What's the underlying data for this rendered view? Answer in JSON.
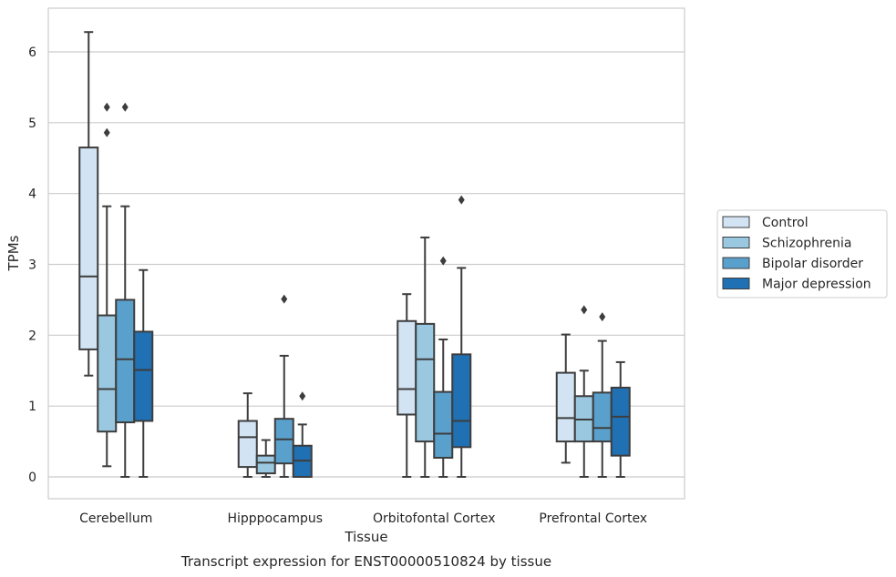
{
  "chart_data": {
    "type": "box",
    "xlabel": "Tissue",
    "ylabel": "TPMs",
    "caption": "Transcript expression for ENST00000510824 by tissue",
    "ylim": [
      -0.3,
      6.5
    ],
    "yticks": [
      0,
      1,
      2,
      3,
      4,
      5,
      6
    ],
    "grid": "horizontal",
    "legend_position": "right",
    "categories": [
      "Cerebellum",
      "Hipppocampus",
      "Orbitofontal Cortex",
      "Prefrontal Cortex"
    ],
    "series": [
      {
        "name": "Control",
        "color": "#d2e3f3",
        "boxes": [
          {
            "whisker_low": 1.43,
            "q1": 1.8,
            "median": 2.83,
            "q3": 4.65,
            "whisker_high": 6.28,
            "outliers": []
          },
          {
            "whisker_low": 0.0,
            "q1": 0.14,
            "median": 0.56,
            "q3": 0.79,
            "whisker_high": 1.18,
            "outliers": []
          },
          {
            "whisker_low": 0.0,
            "q1": 0.88,
            "median": 1.24,
            "q3": 2.2,
            "whisker_high": 2.58,
            "outliers": []
          },
          {
            "whisker_low": 0.2,
            "q1": 0.5,
            "median": 0.83,
            "q3": 1.47,
            "whisker_high": 2.01,
            "outliers": []
          }
        ]
      },
      {
        "name": "Schizophrenia",
        "color": "#9ac8e0",
        "boxes": [
          {
            "whisker_low": 0.15,
            "q1": 0.64,
            "median": 1.24,
            "q3": 2.28,
            "whisker_high": 3.82,
            "outliers": [
              4.86,
              5.22
            ]
          },
          {
            "whisker_low": 0.0,
            "q1": 0.05,
            "median": 0.2,
            "q3": 0.3,
            "whisker_high": 0.52,
            "outliers": []
          },
          {
            "whisker_low": 0.0,
            "q1": 0.5,
            "median": 1.66,
            "q3": 2.16,
            "whisker_high": 3.38,
            "outliers": []
          },
          {
            "whisker_low": 0.0,
            "q1": 0.5,
            "median": 0.81,
            "q3": 1.14,
            "whisker_high": 1.5,
            "outliers": [
              2.36
            ]
          }
        ]
      },
      {
        "name": "Bipolar disorder",
        "color": "#5aa0cd",
        "boxes": [
          {
            "whisker_low": 0.0,
            "q1": 0.77,
            "median": 1.66,
            "q3": 2.5,
            "whisker_high": 3.82,
            "outliers": [
              5.22
            ]
          },
          {
            "whisker_low": 0.0,
            "q1": 0.19,
            "median": 0.53,
            "q3": 0.82,
            "whisker_high": 1.71,
            "outliers": [
              2.51
            ]
          },
          {
            "whisker_low": 0.0,
            "q1": 0.27,
            "median": 0.61,
            "q3": 1.2,
            "whisker_high": 1.94,
            "outliers": [
              3.05
            ]
          },
          {
            "whisker_low": 0.0,
            "q1": 0.5,
            "median": 0.69,
            "q3": 1.19,
            "whisker_high": 1.92,
            "outliers": [
              2.26
            ]
          }
        ]
      },
      {
        "name": "Major depression",
        "color": "#2070b4",
        "boxes": [
          {
            "whisker_low": 0.0,
            "q1": 0.79,
            "median": 1.51,
            "q3": 2.05,
            "whisker_high": 2.92,
            "outliers": []
          },
          {
            "whisker_low": 0.0,
            "q1": 0.0,
            "median": 0.23,
            "q3": 0.44,
            "whisker_high": 0.74,
            "outliers": [
              1.14
            ]
          },
          {
            "whisker_low": 0.0,
            "q1": 0.42,
            "median": 0.79,
            "q3": 1.73,
            "whisker_high": 2.95,
            "outliers": [
              3.91
            ]
          },
          {
            "whisker_low": 0.0,
            "q1": 0.3,
            "median": 0.85,
            "q3": 1.26,
            "whisker_high": 1.62,
            "outliers": []
          }
        ]
      }
    ]
  }
}
